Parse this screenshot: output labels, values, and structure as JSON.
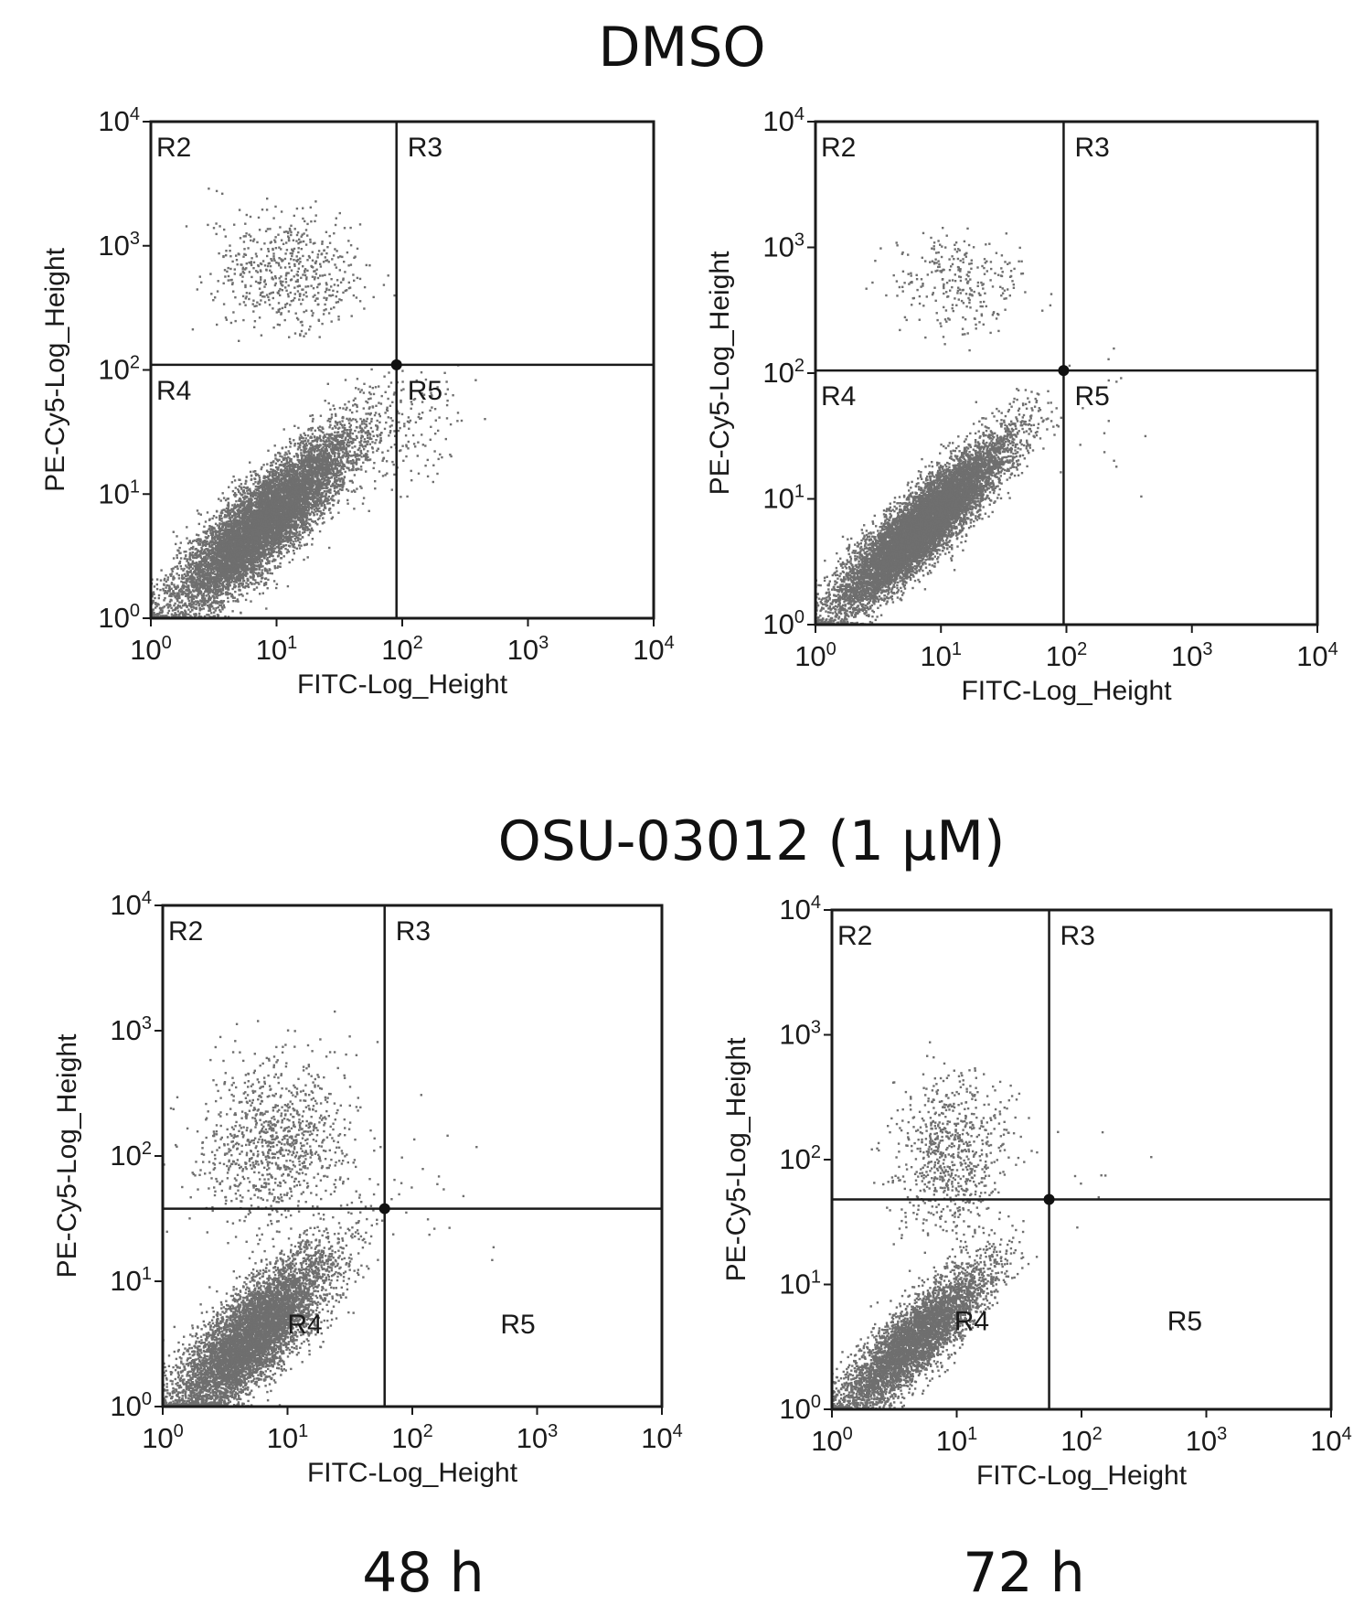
{
  "figure": {
    "group_titles": [
      "DMSO",
      "OSU-03012 (1 μM)"
    ],
    "time_labels": [
      "48 h",
      "72 h"
    ]
  },
  "chart_data": [
    {
      "type": "scatter",
      "group": "DMSO",
      "time": "48 h",
      "xlabel": "FITC-Log_Height",
      "ylabel": "PE-Cy5-Log_Height",
      "xscale": "log",
      "yscale": "log",
      "xlim": [
        1,
        10000
      ],
      "ylim": [
        1,
        10000
      ],
      "ticks": [
        {
          "base": "10",
          "exp": "0"
        },
        {
          "base": "10",
          "exp": "1"
        },
        {
          "base": "10",
          "exp": "2"
        },
        {
          "base": "10",
          "exp": "3"
        },
        {
          "base": "10",
          "exp": "4"
        }
      ],
      "gate": {
        "x": 90,
        "y": 110
      },
      "regions": [
        {
          "name": "R2",
          "pos": "upper-left"
        },
        {
          "name": "R3",
          "pos": "upper-right"
        },
        {
          "name": "R4",
          "pos": "lower-left"
        },
        {
          "name": "R5",
          "pos": "lower-right"
        }
      ],
      "populations": [
        {
          "count": 9000,
          "x_center": 8,
          "y_center": 6,
          "x_spread_decades": 0.36,
          "y_spread_decades": 0.36,
          "correlation": 0.86
        },
        {
          "count": 550,
          "x_center": 12,
          "y_center": 600,
          "x_spread_decades": 0.3,
          "y_spread_decades": 0.24,
          "correlation": 0.0
        },
        {
          "count": 130,
          "x_center": 120,
          "y_center": 30,
          "x_spread_decades": 0.22,
          "y_spread_decades": 0.25,
          "correlation": 0.3
        }
      ]
    },
    {
      "type": "scatter",
      "group": "DMSO",
      "time": "72 h",
      "xlabel": "FITC-Log_Height",
      "ylabel": "PE-Cy5-Log_Height",
      "xscale": "log",
      "yscale": "log",
      "xlim": [
        1,
        10000
      ],
      "ylim": [
        1,
        10000
      ],
      "ticks": [
        {
          "base": "10",
          "exp": "0"
        },
        {
          "base": "10",
          "exp": "1"
        },
        {
          "base": "10",
          "exp": "2"
        },
        {
          "base": "10",
          "exp": "3"
        },
        {
          "base": "10",
          "exp": "4"
        }
      ],
      "gate": {
        "x": 95,
        "y": 105
      },
      "regions": [
        {
          "name": "R2",
          "pos": "upper-left"
        },
        {
          "name": "R3",
          "pos": "upper-right"
        },
        {
          "name": "R4",
          "pos": "lower-left"
        },
        {
          "name": "R5",
          "pos": "lower-right"
        }
      ],
      "populations": [
        {
          "count": 9500,
          "x_center": 7,
          "y_center": 6,
          "x_spread_decades": 0.34,
          "y_spread_decades": 0.34,
          "correlation": 0.9
        },
        {
          "count": 280,
          "x_center": 14,
          "y_center": 500,
          "x_spread_decades": 0.25,
          "y_spread_decades": 0.2,
          "correlation": 0.0
        },
        {
          "count": 20,
          "x_center": 150,
          "y_center": 40,
          "x_spread_decades": 0.25,
          "y_spread_decades": 0.3,
          "correlation": 0.0
        }
      ]
    },
    {
      "type": "scatter",
      "group": "OSU-03012 (1 μM)",
      "time": "48 h",
      "xlabel": "FITC-Log_Height",
      "ylabel": "PE-Cy5-Log_Height",
      "xscale": "log",
      "yscale": "log",
      "xlim": [
        1,
        10000
      ],
      "ylim": [
        1,
        10000
      ],
      "ticks": [
        {
          "base": "10",
          "exp": "0"
        },
        {
          "base": "10",
          "exp": "1"
        },
        {
          "base": "10",
          "exp": "2"
        },
        {
          "base": "10",
          "exp": "3"
        },
        {
          "base": "10",
          "exp": "4"
        }
      ],
      "gate": {
        "x": 60,
        "y": 38
      },
      "regions": [
        {
          "name": "R2",
          "pos": "upper-left"
        },
        {
          "name": "R3",
          "pos": "upper-right"
        },
        {
          "name": "R4",
          "pos": "lower-left"
        },
        {
          "name": "R5",
          "pos": "lower-right"
        }
      ],
      "populations": [
        {
          "count": 6500,
          "x_center": 5,
          "y_center": 3.5,
          "x_spread_decades": 0.32,
          "y_spread_decades": 0.34,
          "correlation": 0.8
        },
        {
          "count": 1000,
          "x_center": 8,
          "y_center": 130,
          "x_spread_decades": 0.3,
          "y_spread_decades": 0.32,
          "correlation": 0.1
        },
        {
          "count": 30,
          "x_center": 120,
          "y_center": 60,
          "x_spread_decades": 0.35,
          "y_spread_decades": 0.4,
          "correlation": 0.0
        }
      ]
    },
    {
      "type": "scatter",
      "group": "OSU-03012 (1 μM)",
      "time": "72 h",
      "xlabel": "FITC-Log_Height",
      "ylabel": "PE-Cy5-Log_Height",
      "xscale": "log",
      "yscale": "log",
      "xlim": [
        1,
        10000
      ],
      "ylim": [
        1,
        10000
      ],
      "ticks": [
        {
          "base": "10",
          "exp": "0"
        },
        {
          "base": "10",
          "exp": "1"
        },
        {
          "base": "10",
          "exp": "2"
        },
        {
          "base": "10",
          "exp": "3"
        },
        {
          "base": "10",
          "exp": "4"
        }
      ],
      "gate": {
        "x": 55,
        "y": 48
      },
      "regions": [
        {
          "name": "R2",
          "pos": "upper-left"
        },
        {
          "name": "R3",
          "pos": "upper-right"
        },
        {
          "name": "R4",
          "pos": "lower-left"
        },
        {
          "name": "R5",
          "pos": "lower-right"
        }
      ],
      "populations": [
        {
          "count": 4500,
          "x_center": 4.5,
          "y_center": 3.5,
          "x_spread_decades": 0.3,
          "y_spread_decades": 0.3,
          "correlation": 0.85
        },
        {
          "count": 750,
          "x_center": 9,
          "y_center": 110,
          "x_spread_decades": 0.22,
          "y_spread_decades": 0.3,
          "correlation": 0.1
        },
        {
          "count": 12,
          "x_center": 100,
          "y_center": 100,
          "x_spread_decades": 0.4,
          "y_spread_decades": 0.4,
          "correlation": 0.0
        }
      ]
    }
  ]
}
